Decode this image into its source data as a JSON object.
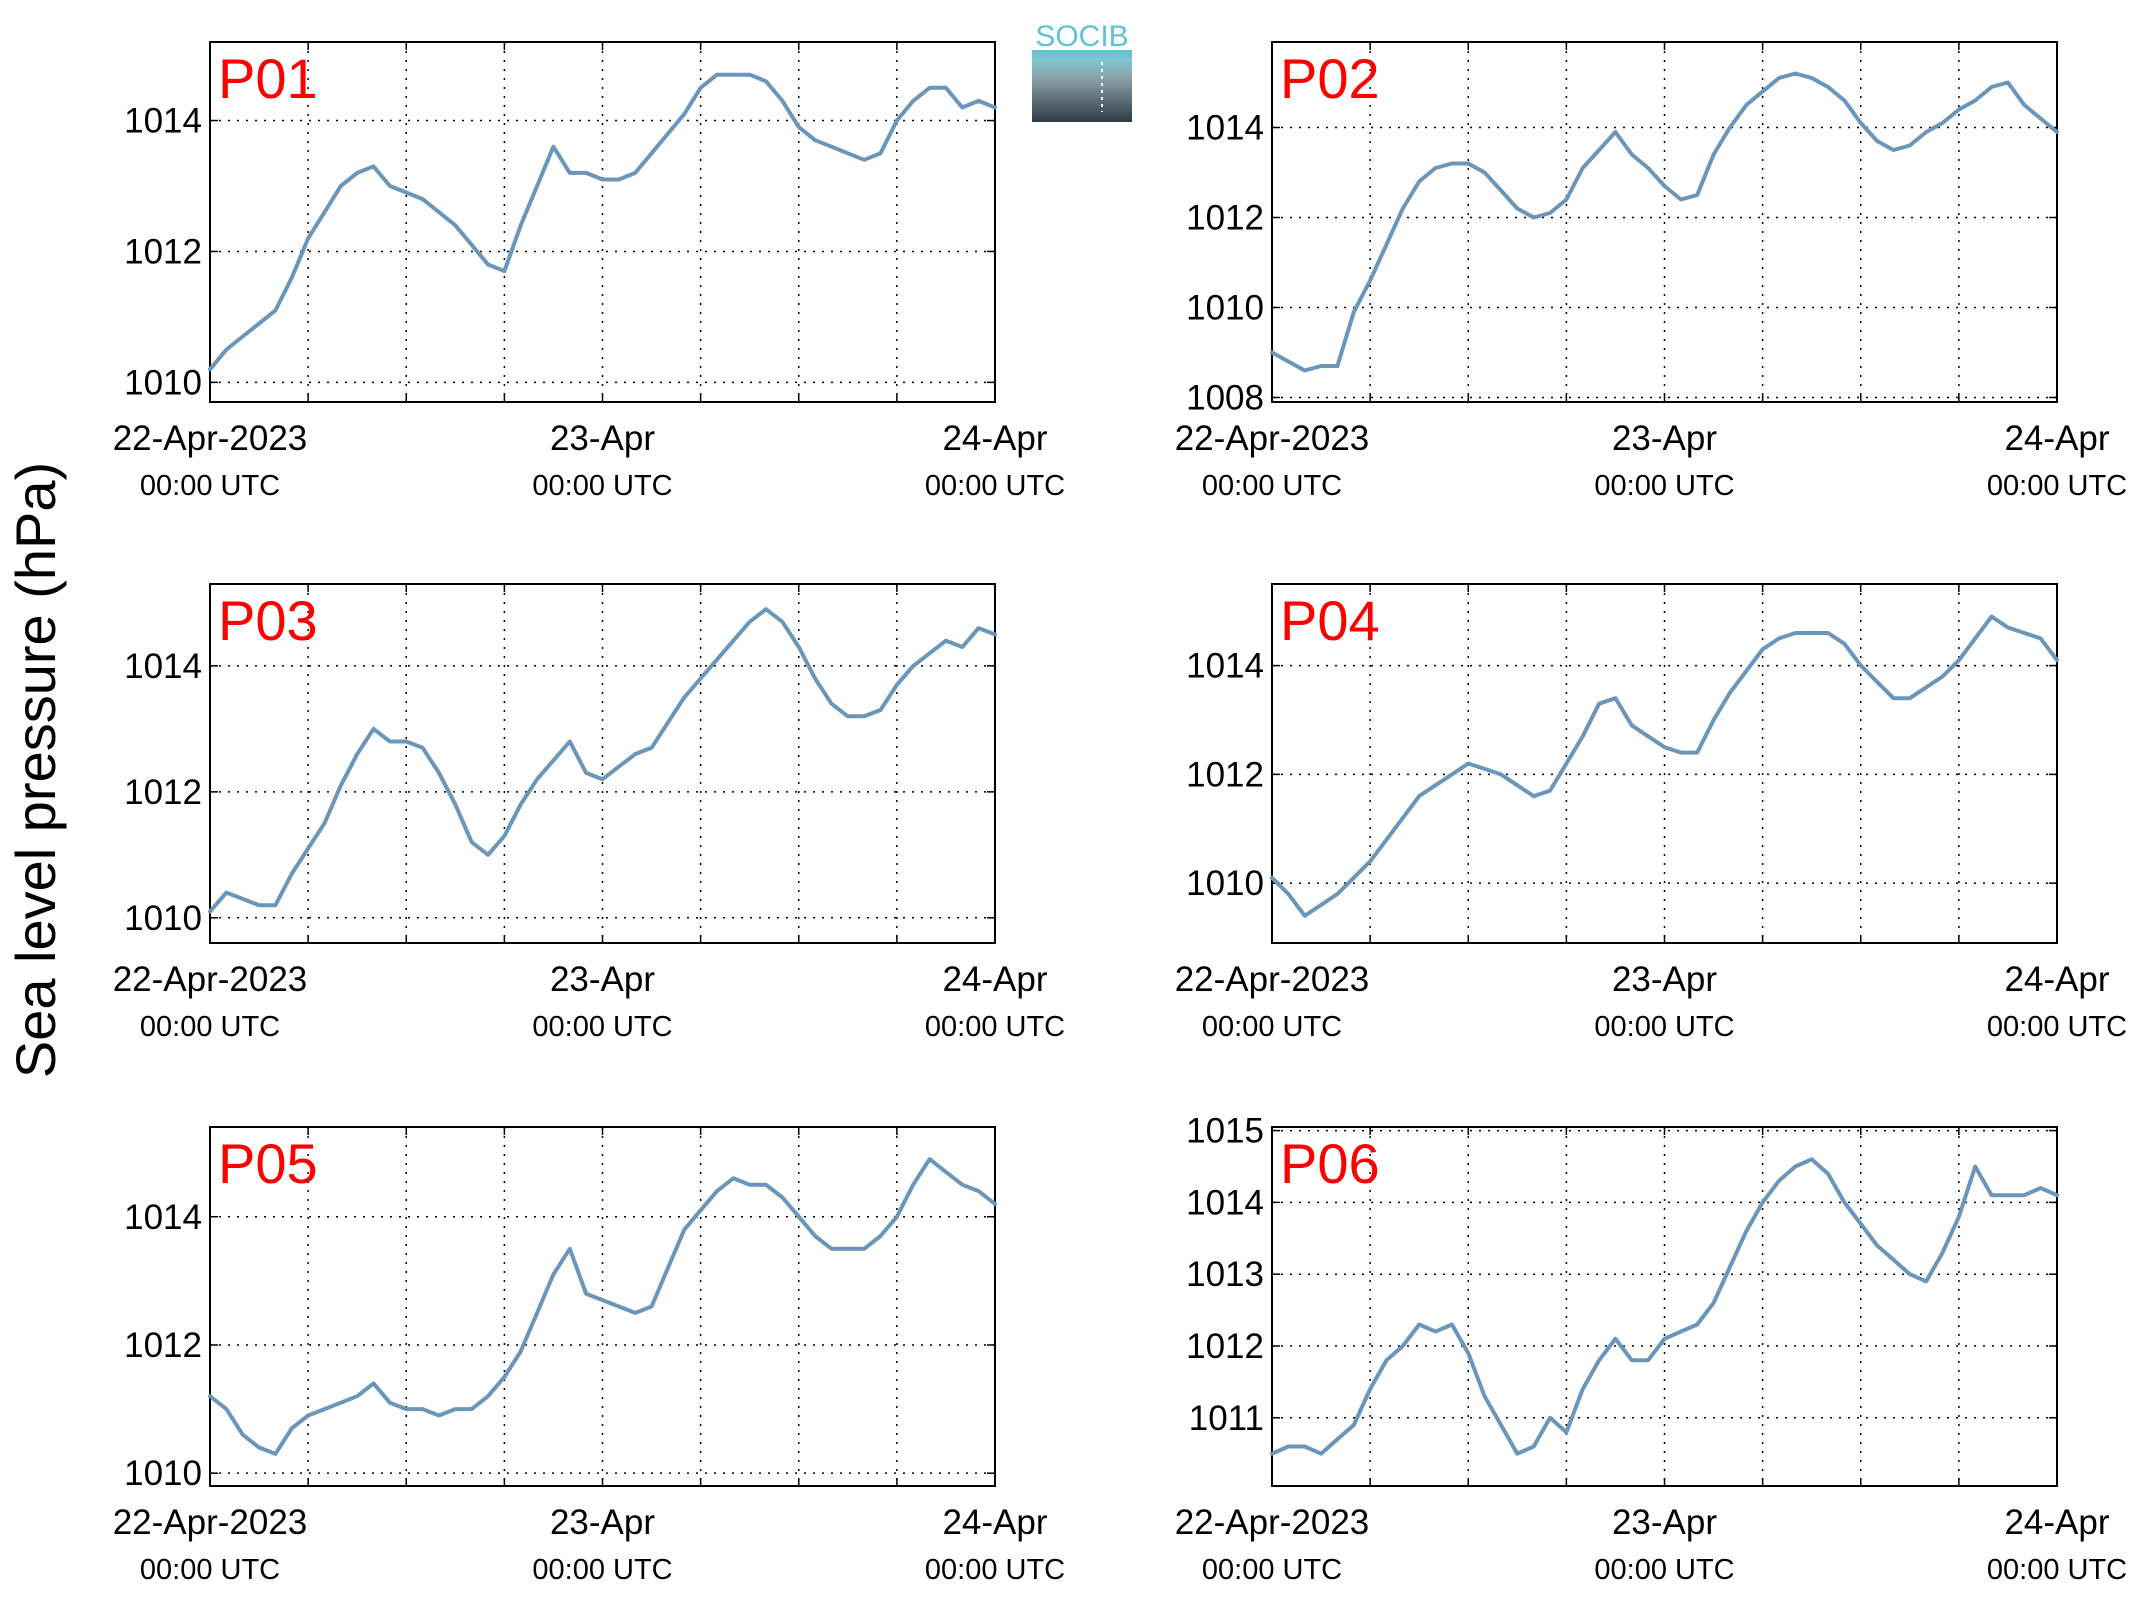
{
  "figure": {
    "ylabel": "Sea level pressure (hPa)",
    "logo_text": "SOCIB",
    "line_color": "#6b96b9",
    "tag_color": "#ff0000"
  },
  "x_ticks": [
    {
      "value": 0,
      "label": "22-Apr-2023",
      "sub": "00:00 UTC"
    },
    {
      "value": 24,
      "label": "23-Apr",
      "sub": "00:00 UTC"
    },
    {
      "value": 48,
      "label": "24-Apr",
      "sub": "00:00 UTC"
    }
  ],
  "chart_data": [
    {
      "type": "line",
      "panel_label": "P01",
      "xlim": [
        0,
        48
      ],
      "ylim": [
        1009.7,
        1015.2
      ],
      "yticks": [
        1010,
        1012,
        1014
      ],
      "x_unit": "hours since 22-Apr-2023 00:00 UTC",
      "x": [
        0,
        1,
        2,
        3,
        4,
        5,
        6,
        7,
        8,
        9,
        10,
        11,
        12,
        13,
        14,
        15,
        16,
        17,
        18,
        19,
        20,
        21,
        22,
        23,
        24,
        25,
        26,
        27,
        28,
        29,
        30,
        31,
        32,
        33,
        34,
        35,
        36,
        37,
        38,
        39,
        40,
        41,
        42,
        43,
        44,
        45,
        46,
        47,
        48
      ],
      "y": [
        1010.2,
        1010.5,
        1010.7,
        1010.9,
        1011.1,
        1011.6,
        1012.2,
        1012.6,
        1013.0,
        1013.2,
        1013.3,
        1013.0,
        1012.9,
        1012.8,
        1012.6,
        1012.4,
        1012.1,
        1011.8,
        1011.7,
        1012.4,
        1013.0,
        1013.6,
        1013.2,
        1013.2,
        1013.1,
        1013.1,
        1013.2,
        1013.5,
        1013.8,
        1014.1,
        1014.5,
        1014.7,
        1014.7,
        1014.7,
        1014.6,
        1014.3,
        1013.9,
        1013.7,
        1013.6,
        1013.5,
        1013.4,
        1013.5,
        1014.0,
        1014.3,
        1014.5,
        1014.5,
        1014.2,
        1014.3,
        1014.2
      ]
    },
    {
      "type": "line",
      "panel_label": "P02",
      "xlim": [
        0,
        48
      ],
      "ylim": [
        1007.9,
        1015.9
      ],
      "yticks": [
        1008,
        1010,
        1012,
        1014
      ],
      "x_unit": "hours since 22-Apr-2023 00:00 UTC",
      "x": [
        0,
        1,
        2,
        3,
        4,
        5,
        6,
        7,
        8,
        9,
        10,
        11,
        12,
        13,
        14,
        15,
        16,
        17,
        18,
        19,
        20,
        21,
        22,
        23,
        24,
        25,
        26,
        27,
        28,
        29,
        30,
        31,
        32,
        33,
        34,
        35,
        36,
        37,
        38,
        39,
        40,
        41,
        42,
        43,
        44,
        45,
        46,
        47,
        48
      ],
      "y": [
        1009.0,
        1008.8,
        1008.6,
        1008.7,
        1008.7,
        1009.9,
        1010.6,
        1011.4,
        1012.2,
        1012.8,
        1013.1,
        1013.2,
        1013.2,
        1013.0,
        1012.6,
        1012.2,
        1012.0,
        1012.1,
        1012.4,
        1013.1,
        1013.5,
        1013.9,
        1013.4,
        1013.1,
        1012.7,
        1012.4,
        1012.5,
        1013.4,
        1014.0,
        1014.5,
        1014.8,
        1015.1,
        1015.2,
        1015.1,
        1014.9,
        1014.6,
        1014.1,
        1013.7,
        1013.5,
        1013.6,
        1013.9,
        1014.1,
        1014.4,
        1014.6,
        1014.9,
        1015.0,
        1014.5,
        1014.2,
        1013.9
      ]
    },
    {
      "type": "line",
      "panel_label": "P03",
      "xlim": [
        0,
        48
      ],
      "ylim": [
        1009.6,
        1015.3
      ],
      "yticks": [
        1010,
        1012,
        1014
      ],
      "x_unit": "hours since 22-Apr-2023 00:00 UTC",
      "x": [
        0,
        1,
        2,
        3,
        4,
        5,
        6,
        7,
        8,
        9,
        10,
        11,
        12,
        13,
        14,
        15,
        16,
        17,
        18,
        19,
        20,
        21,
        22,
        23,
        24,
        25,
        26,
        27,
        28,
        29,
        30,
        31,
        32,
        33,
        34,
        35,
        36,
        37,
        38,
        39,
        40,
        41,
        42,
        43,
        44,
        45,
        46,
        47,
        48
      ],
      "y": [
        1010.1,
        1010.4,
        1010.3,
        1010.2,
        1010.2,
        1010.7,
        1011.1,
        1011.5,
        1012.1,
        1012.6,
        1013.0,
        1012.8,
        1012.8,
        1012.7,
        1012.3,
        1011.8,
        1011.2,
        1011.0,
        1011.3,
        1011.8,
        1012.2,
        1012.5,
        1012.8,
        1012.3,
        1012.2,
        1012.4,
        1012.6,
        1012.7,
        1013.1,
        1013.5,
        1013.8,
        1014.1,
        1014.4,
        1014.7,
        1014.9,
        1014.7,
        1014.3,
        1013.8,
        1013.4,
        1013.2,
        1013.2,
        1013.3,
        1013.7,
        1014.0,
        1014.2,
        1014.4,
        1014.3,
        1014.6,
        1014.5
      ]
    },
    {
      "type": "line",
      "panel_label": "P04",
      "xlim": [
        0,
        48
      ],
      "ylim": [
        1008.9,
        1015.5
      ],
      "yticks": [
        1010,
        1012,
        1014
      ],
      "x_unit": "hours since 22-Apr-2023 00:00 UTC",
      "x": [
        0,
        1,
        2,
        3,
        4,
        5,
        6,
        7,
        8,
        9,
        10,
        11,
        12,
        13,
        14,
        15,
        16,
        17,
        18,
        19,
        20,
        21,
        22,
        23,
        24,
        25,
        26,
        27,
        28,
        29,
        30,
        31,
        32,
        33,
        34,
        35,
        36,
        37,
        38,
        39,
        40,
        41,
        42,
        43,
        44,
        45,
        46,
        47,
        48
      ],
      "y": [
        1010.1,
        1009.8,
        1009.4,
        1009.6,
        1009.8,
        1010.1,
        1010.4,
        1010.8,
        1011.2,
        1011.6,
        1011.8,
        1012.0,
        1012.2,
        1012.1,
        1012.0,
        1011.8,
        1011.6,
        1011.7,
        1012.2,
        1012.7,
        1013.3,
        1013.4,
        1012.9,
        1012.7,
        1012.5,
        1012.4,
        1012.4,
        1013.0,
        1013.5,
        1013.9,
        1014.3,
        1014.5,
        1014.6,
        1014.6,
        1014.6,
        1014.4,
        1014.0,
        1013.7,
        1013.4,
        1013.4,
        1013.6,
        1013.8,
        1014.1,
        1014.5,
        1014.9,
        1014.7,
        1014.6,
        1014.5,
        1014.1
      ]
    },
    {
      "type": "line",
      "panel_label": "P05",
      "xlim": [
        0,
        48
      ],
      "ylim": [
        1009.8,
        1015.4
      ],
      "yticks": [
        1010,
        1012,
        1014
      ],
      "x_unit": "hours since 22-Apr-2023 00:00 UTC",
      "x": [
        0,
        1,
        2,
        3,
        4,
        5,
        6,
        7,
        8,
        9,
        10,
        11,
        12,
        13,
        14,
        15,
        16,
        17,
        18,
        19,
        20,
        21,
        22,
        23,
        24,
        25,
        26,
        27,
        28,
        29,
        30,
        31,
        32,
        33,
        34,
        35,
        36,
        37,
        38,
        39,
        40,
        41,
        42,
        43,
        44,
        45,
        46,
        47,
        48
      ],
      "y": [
        1011.2,
        1011.0,
        1010.6,
        1010.4,
        1010.3,
        1010.7,
        1010.9,
        1011.0,
        1011.1,
        1011.2,
        1011.4,
        1011.1,
        1011.0,
        1011.0,
        1010.9,
        1011.0,
        1011.0,
        1011.2,
        1011.5,
        1011.9,
        1012.5,
        1013.1,
        1013.5,
        1012.8,
        1012.7,
        1012.6,
        1012.5,
        1012.6,
        1013.2,
        1013.8,
        1014.1,
        1014.4,
        1014.6,
        1014.5,
        1014.5,
        1014.3,
        1014.0,
        1013.7,
        1013.5,
        1013.5,
        1013.5,
        1013.7,
        1014.0,
        1014.5,
        1014.9,
        1014.7,
        1014.5,
        1014.4,
        1014.2
      ]
    },
    {
      "type": "line",
      "panel_label": "P06",
      "xlim": [
        0,
        48
      ],
      "ylim": [
        1010.05,
        1015.05
      ],
      "yticks": [
        1011,
        1012,
        1013,
        1014,
        1015
      ],
      "x_unit": "hours since 22-Apr-2023 00:00 UTC",
      "x": [
        0,
        1,
        2,
        3,
        4,
        5,
        6,
        7,
        8,
        9,
        10,
        11,
        12,
        13,
        14,
        15,
        16,
        17,
        18,
        19,
        20,
        21,
        22,
        23,
        24,
        25,
        26,
        27,
        28,
        29,
        30,
        31,
        32,
        33,
        34,
        35,
        36,
        37,
        38,
        39,
        40,
        41,
        42,
        43,
        44,
        45,
        46,
        47,
        48
      ],
      "y": [
        1010.5,
        1010.6,
        1010.6,
        1010.5,
        1010.7,
        1010.9,
        1011.4,
        1011.8,
        1012.0,
        1012.3,
        1012.2,
        1012.3,
        1011.9,
        1011.3,
        1010.9,
        1010.5,
        1010.6,
        1011.0,
        1010.8,
        1011.4,
        1011.8,
        1012.1,
        1011.8,
        1011.8,
        1012.1,
        1012.2,
        1012.3,
        1012.6,
        1013.1,
        1013.6,
        1014.0,
        1014.3,
        1014.5,
        1014.6,
        1014.4,
        1014.0,
        1013.7,
        1013.4,
        1013.2,
        1013.0,
        1012.9,
        1013.3,
        1013.8,
        1014.5,
        1014.1,
        1014.1,
        1014.1,
        1014.2,
        1014.1
      ]
    }
  ]
}
